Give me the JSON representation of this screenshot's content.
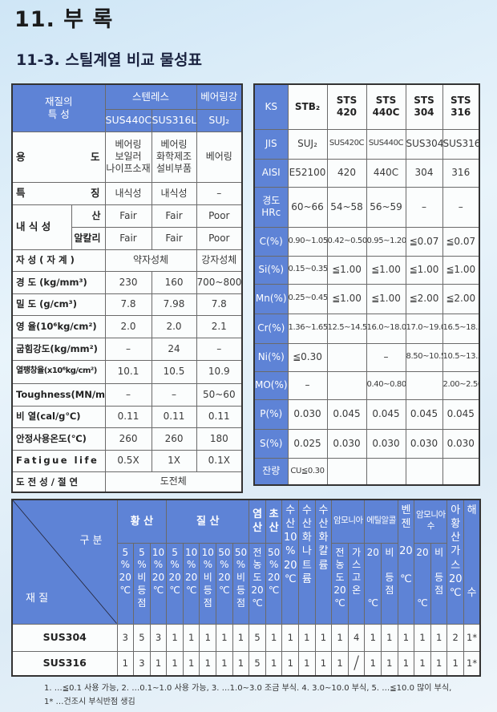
{
  "page": {
    "title": "11. 부 록",
    "subtitle": "11-3. 스틸계열 비교 물성표"
  },
  "left_table": {
    "corner": "재질의\n특 성",
    "group_stainless": "스텐레스",
    "group_bearing": "베어링강",
    "cols": [
      "SUS440C",
      "SUS316L",
      "SUJ₂"
    ],
    "rows": [
      {
        "label": "용 도",
        "cells": [
          {
            "t": "베어링\n보일러\n나이프소재"
          },
          {
            "t": "베어링\n화학제조\n설비부품"
          },
          {
            "t": "베어링"
          }
        ]
      },
      {
        "label": "특 징",
        "cells": [
          {
            "t": "내식성"
          },
          {
            "t": "내식성"
          },
          {
            "t": "–"
          }
        ]
      },
      {
        "group": "내 식 성",
        "sub": "산",
        "cells": [
          {
            "t": "Fair"
          },
          {
            "t": "Fair"
          },
          {
            "t": "Poor"
          }
        ]
      },
      {
        "sub": "알칼리",
        "cells": [
          {
            "t": "Fair"
          },
          {
            "t": "Fair"
          },
          {
            "t": "Poor"
          }
        ]
      },
      {
        "label": "자 성 ( 자 계 )",
        "cells": [
          {
            "t": "약자성체",
            "span": 2
          },
          {
            "t": "강자성체"
          }
        ]
      },
      {
        "label": "경 도 (kg/mm³)",
        "cells": [
          {
            "t": "230"
          },
          {
            "t": "160"
          },
          {
            "t": "700~800"
          }
        ]
      },
      {
        "label": "밀 도 (g/cm³)",
        "cells": [
          {
            "t": "7.8"
          },
          {
            "t": "7.98"
          },
          {
            "t": "7.8"
          }
        ]
      },
      {
        "label": "영 율(10⁶kg/cm²)",
        "cells": [
          {
            "t": "2.0"
          },
          {
            "t": "2.0"
          },
          {
            "t": "2.1"
          }
        ]
      },
      {
        "label": "굽힘강도(kg/mm²)",
        "cells": [
          {
            "t": "–"
          },
          {
            "t": "24"
          },
          {
            "t": "–"
          }
        ]
      },
      {
        "label": "열팽창율(x10⁶kg/cm²)",
        "cells": [
          {
            "t": "10.1"
          },
          {
            "t": "10.5"
          },
          {
            "t": "10.9"
          }
        ]
      },
      {
        "label": "Toughness(MN/m)",
        "cells": [
          {
            "t": "–"
          },
          {
            "t": "–"
          },
          {
            "t": "50~60"
          }
        ]
      },
      {
        "label": "비 열(cal/g℃)",
        "cells": [
          {
            "t": "0.11"
          },
          {
            "t": "0.11"
          },
          {
            "t": "0.11"
          }
        ]
      },
      {
        "label": "안정사용온도(℃)",
        "cells": [
          {
            "t": "260"
          },
          {
            "t": "260"
          },
          {
            "t": "180"
          }
        ]
      },
      {
        "label": "Fatigue life",
        "cells": [
          {
            "t": "0.5X"
          },
          {
            "t": "1X"
          },
          {
            "t": "0.1X"
          }
        ]
      },
      {
        "label": "도 전 성 / 절 연",
        "cells": [
          {
            "t": "도전체",
            "span": 3
          }
        ]
      }
    ]
  },
  "right_table": {
    "header_label": "KS",
    "header": [
      "STB₂",
      "STS\n420",
      "STS\n440C",
      "STS\n304",
      "STS\n316"
    ],
    "rows": [
      {
        "label": "JIS",
        "cells": [
          "SUJ₂",
          "SUS420C",
          "SUS440C",
          "SUS304",
          "SUS316"
        ]
      },
      {
        "label": "AISI",
        "cells": [
          "E52100",
          "420",
          "440C",
          "304",
          "316"
        ]
      },
      {
        "label": "경도\nHRc",
        "cells": [
          "60~66",
          "54~58",
          "56~59",
          "–",
          "–"
        ]
      },
      {
        "label": "C(%)",
        "cells": [
          "0.90~1.05",
          "0.42~0.50",
          "0.95~1.20",
          "≦0.07",
          "≦0.07"
        ]
      },
      {
        "label": "Si(%)",
        "cells": [
          "0.15~0.35",
          "≦1.00",
          "≦1.00",
          "≦1.00",
          "≦1.00"
        ]
      },
      {
        "label": "Mn(%)",
        "cells": [
          "0.25~0.45",
          "≦1.00",
          "≦1.00",
          "≦2.00",
          "≦2.00"
        ]
      },
      {
        "label": "Cr(%)",
        "cells": [
          "1.36~1.65",
          "12.5~14.5",
          "16.0~18.0",
          "17.0~19.0",
          "16.5~18.5"
        ]
      },
      {
        "label": "Ni(%)",
        "cells": [
          "≦0.30",
          "",
          "–",
          "8.50~10.5",
          "10.5~13.5"
        ]
      },
      {
        "label": "MO(%)",
        "cells": [
          "–",
          "",
          "0.40~0.80",
          "",
          "2.00~2.50"
        ]
      },
      {
        "label": "P(%)",
        "cells": [
          "0.030",
          "0.045",
          "0.045",
          "0.045",
          "0.045"
        ]
      },
      {
        "label": "S(%)",
        "cells": [
          "0.025",
          "0.030",
          "0.030",
          "0.030",
          "0.030"
        ]
      },
      {
        "label": "잔량",
        "cells": [
          "CU≦0.30",
          "",
          "",
          "",
          ""
        ]
      }
    ]
  },
  "bottom_table": {
    "corner_top": "구 분",
    "corner_bottom": "재 질",
    "header_row1": [
      {
        "t": "황 산",
        "span": 3
      },
      {
        "t": "질 산",
        "span": 5
      },
      {
        "t": "염\n산",
        "span": 1
      },
      {
        "t": "초\n산",
        "span": 1
      },
      {
        "t": "수\n산\n10\n%\n20\n℃",
        "rows": 2
      },
      {
        "t": "수\n산\n화\n나\n트\n륨",
        "rows": 2
      },
      {
        "t": "수\n산\n화\n칼\n륨",
        "rows": 2
      },
      {
        "t": "암모니아",
        "span": 2
      },
      {
        "t": "에틸알콜",
        "span": 2
      },
      {
        "t": "벤\n젠\n\n20\n\n℃",
        "rows": 2
      },
      {
        "t": "암모니아수",
        "span": 2
      },
      {
        "t": "아\n황\n산\n가\n스\n20\n℃",
        "rows": 2
      },
      {
        "t": "해\n\n\n\n\n\n수",
        "rows": 2
      }
    ],
    "header_row2": [
      "5\n%\n20\n℃",
      "5\n%\n비\n등\n점",
      "10\n%\n20\n℃",
      "5\n%\n20\n℃",
      "10\n%\n20\n℃",
      "10\n%\n비\n등\n점",
      "50\n%\n20\n℃",
      "50\n%\n비\n등\n점",
      "전\n농\n도\n20\n℃",
      "50\n%\n20\n℃",
      "전\n농\n도\n20\n℃",
      "가\n스\n고\n온",
      "20\n\n\n\n℃",
      "비\n\n등\n점",
      "20\n\n\n\n℃",
      "비\n\n등\n점"
    ],
    "rows": [
      {
        "label": "SUS304",
        "cells": [
          "3",
          "5",
          "3",
          "1",
          "1",
          "1",
          "1",
          "1",
          "5",
          "1",
          "1",
          "1",
          "1",
          "1",
          "4",
          "1",
          "1",
          "1",
          "1",
          "1",
          "2",
          "1*"
        ]
      },
      {
        "label": "SUS316",
        "cells": [
          "1",
          "3",
          "1",
          "1",
          "1",
          "1",
          "1",
          "1",
          "5",
          "1",
          "1",
          "1",
          "1",
          "1",
          "/",
          "1",
          "1",
          "1",
          "1",
          "1",
          "1",
          "1*"
        ]
      }
    ]
  },
  "footnotes": {
    "line1": "1. …≦0.1 사용 가능,    2. …0.1~1.0 사용 가능,    3. …1.0~3.0 조금 부식.    4. 3.0~10.0 부식,    5. …≦10.0 많이 부식,",
    "line2": "1* …건조시 부식반점 생김"
  },
  "colors": {
    "header_blue": "#5e83d6",
    "border": "#333333"
  }
}
